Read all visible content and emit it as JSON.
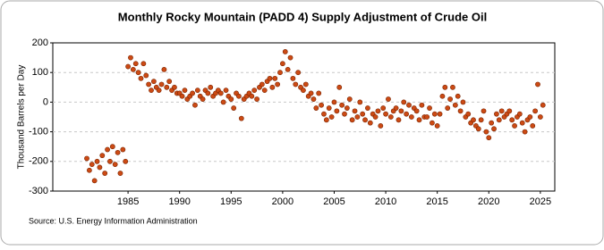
{
  "chart_data": {
    "type": "scatter",
    "title": "Monthly Rocky Mountain (PADD 4) Supply Adjustment of Crude Oil",
    "y_label": "Thousand Barrels per Day",
    "source": "Source: U.S. Energy Information Administration",
    "color": "#cc4a14",
    "grid": true,
    "xlim": [
      1977.7,
      2026.4
    ],
    "xticks": [
      1985,
      1990,
      1995,
      2000,
      2005,
      2010,
      2015,
      2020,
      2025
    ],
    "ylim": [
      -300,
      200
    ],
    "yticks": [
      -300,
      -200,
      -100,
      0,
      100,
      200
    ],
    "series": [
      {
        "name": "Supply Adjustment",
        "x": [
          1981,
          1981.25,
          1981.5,
          1981.75,
          1982,
          1982.25,
          1982.5,
          1982.75,
          1983,
          1983.25,
          1983.5,
          1983.75,
          1984,
          1984.25,
          1984.5,
          1984.75,
          1985,
          1985.25,
          1985.5,
          1985.75,
          1986,
          1986.25,
          1986.5,
          1986.75,
          1987,
          1987.25,
          1987.5,
          1987.75,
          1988,
          1988.25,
          1988.5,
          1988.75,
          1989,
          1989.25,
          1989.5,
          1989.75,
          1990,
          1990.25,
          1990.5,
          1990.75,
          1991,
          1991.25,
          1991.5,
          1991.75,
          1992,
          1992.25,
          1992.5,
          1992.75,
          1993,
          1993.25,
          1993.5,
          1993.75,
          1994,
          1994.25,
          1994.5,
          1994.75,
          1995,
          1995.25,
          1995.5,
          1995.75,
          1996,
          1996.25,
          1996.5,
          1996.75,
          1997,
          1997.25,
          1997.5,
          1997.75,
          1998,
          1998.25,
          1998.5,
          1998.75,
          1999,
          1999.25,
          1999.5,
          1999.75,
          2000,
          2000.25,
          2000.5,
          2000.75,
          2001,
          2001.25,
          2001.5,
          2001.75,
          2002,
          2002.25,
          2002.5,
          2002.75,
          2003,
          2003.25,
          2003.5,
          2003.75,
          2004,
          2004.25,
          2004.5,
          2004.75,
          2005,
          2005.25,
          2005.5,
          2005.75,
          2006,
          2006.25,
          2006.5,
          2006.75,
          2007,
          2007.25,
          2007.5,
          2007.75,
          2008,
          2008.25,
          2008.5,
          2008.75,
          2009,
          2009.25,
          2009.5,
          2009.75,
          2010,
          2010.25,
          2010.5,
          2010.75,
          2011,
          2011.25,
          2011.5,
          2011.75,
          2012,
          2012.25,
          2012.5,
          2012.75,
          2013,
          2013.25,
          2013.5,
          2013.75,
          2014,
          2014.25,
          2014.5,
          2014.75,
          2015,
          2015.25,
          2015.5,
          2015.75,
          2016,
          2016.25,
          2016.5,
          2016.75,
          2017,
          2017.25,
          2017.5,
          2017.75,
          2018,
          2018.25,
          2018.5,
          2018.75,
          2019,
          2019.25,
          2019.5,
          2019.75,
          2020,
          2020.25,
          2020.5,
          2020.75,
          2021,
          2021.25,
          2021.5,
          2021.75,
          2022,
          2022.25,
          2022.5,
          2022.75,
          2023,
          2023.25,
          2023.5,
          2023.75,
          2024,
          2024.25,
          2024.5,
          2024.75,
          2025,
          2025.25
        ],
        "values": [
          -190,
          -230,
          -210,
          -265,
          -200,
          -220,
          -180,
          -240,
          -160,
          -200,
          -150,
          -210,
          -170,
          -240,
          -160,
          -200,
          120,
          150,
          110,
          130,
          100,
          80,
          130,
          90,
          60,
          40,
          70,
          50,
          40,
          60,
          110,
          50,
          70,
          40,
          50,
          30,
          30,
          20,
          40,
          10,
          20,
          30,
          -10,
          40,
          20,
          10,
          40,
          30,
          50,
          20,
          30,
          40,
          30,
          0,
          40,
          20,
          10,
          -20,
          30,
          20,
          -55,
          10,
          20,
          30,
          20,
          40,
          10,
          50,
          60,
          40,
          70,
          80,
          50,
          80,
          60,
          100,
          130,
          170,
          110,
          150,
          80,
          60,
          100,
          50,
          40,
          60,
          20,
          30,
          10,
          -20,
          30,
          -10,
          -40,
          -60,
          -20,
          -50,
          0,
          -30,
          50,
          -10,
          -40,
          -20,
          10,
          -60,
          -30,
          -50,
          0,
          -40,
          -60,
          -20,
          -70,
          -40,
          -50,
          -30,
          -80,
          -20,
          -40,
          10,
          -50,
          -30,
          -20,
          -60,
          -30,
          0,
          -40,
          -10,
          -50,
          -20,
          -30,
          -60,
          -10,
          -50,
          -50,
          -20,
          -70,
          -40,
          -80,
          -40,
          20,
          50,
          -20,
          10,
          50,
          -10,
          20,
          -30,
          0,
          -50,
          -40,
          -70,
          -60,
          -80,
          -90,
          -60,
          -30,
          -100,
          -120,
          -70,
          -90,
          -40,
          -60,
          -30,
          -50,
          -40,
          -30,
          -60,
          -80,
          -50,
          -40,
          -70,
          -100,
          -60,
          -50,
          -80,
          -30,
          60,
          -50,
          -10
        ]
      }
    ]
  }
}
